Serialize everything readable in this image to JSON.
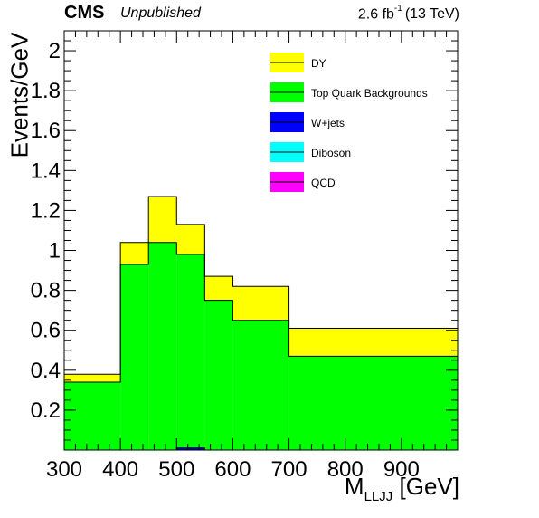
{
  "header": {
    "experiment": "CMS",
    "status": "Unpublished",
    "lumi_value": "2.6 fb",
    "lumi_exp": "-1",
    "lumi_energy": "(13 TeV)"
  },
  "axis": {
    "ylabel": "Events/GeV",
    "xlabel_main": "M",
    "xlabel_sub": "LLJJ",
    "xlabel_unit": "[GeV]"
  },
  "chart_data": {
    "type": "bar",
    "stacked": true,
    "histogram": true,
    "xlim": [
      300,
      1000
    ],
    "ylim": [
      0,
      2.1
    ],
    "xticks": [
      300,
      400,
      500,
      600,
      700,
      800,
      900
    ],
    "xtick_labels": [
      "300",
      "400",
      "500",
      "600",
      "700",
      "800",
      "900"
    ],
    "yticks": [
      0.2,
      0.4,
      0.6,
      0.8,
      1,
      1.2,
      1.4,
      1.6,
      1.8,
      2
    ],
    "ytick_labels": [
      "0.2",
      "0.4",
      "0.6",
      "0.8",
      "1",
      "1.2",
      "1.4",
      "1.6",
      "1.8",
      "2"
    ],
    "bin_edges": [
      300,
      400,
      450,
      500,
      550,
      600,
      700,
      1000
    ],
    "series": [
      {
        "name": "QCD",
        "color": "#ff00ff",
        "values": [
          0,
          0,
          0,
          0,
          0,
          0,
          0
        ]
      },
      {
        "name": "Diboson",
        "color": "#00ffff",
        "values": [
          0,
          0,
          0,
          0,
          0,
          0,
          0
        ]
      },
      {
        "name": "W+jets",
        "color": "#0000ff",
        "values": [
          0,
          0,
          0,
          0.01,
          0,
          0,
          0
        ]
      },
      {
        "name": "Top Quark Backgrounds",
        "color": "#00ff00",
        "values": [
          0.34,
          0.93,
          1.04,
          0.97,
          0.75,
          0.65,
          0.47
        ]
      },
      {
        "name": "DY",
        "color": "#ffff00",
        "values": [
          0.04,
          0.11,
          0.23,
          0.15,
          0.12,
          0.17,
          0.14
        ]
      }
    ],
    "legend_order": [
      "DY",
      "Top Quark Backgrounds",
      "W+jets",
      "Diboson",
      "QCD"
    ],
    "legend_position": "top-right",
    "grid": false
  }
}
